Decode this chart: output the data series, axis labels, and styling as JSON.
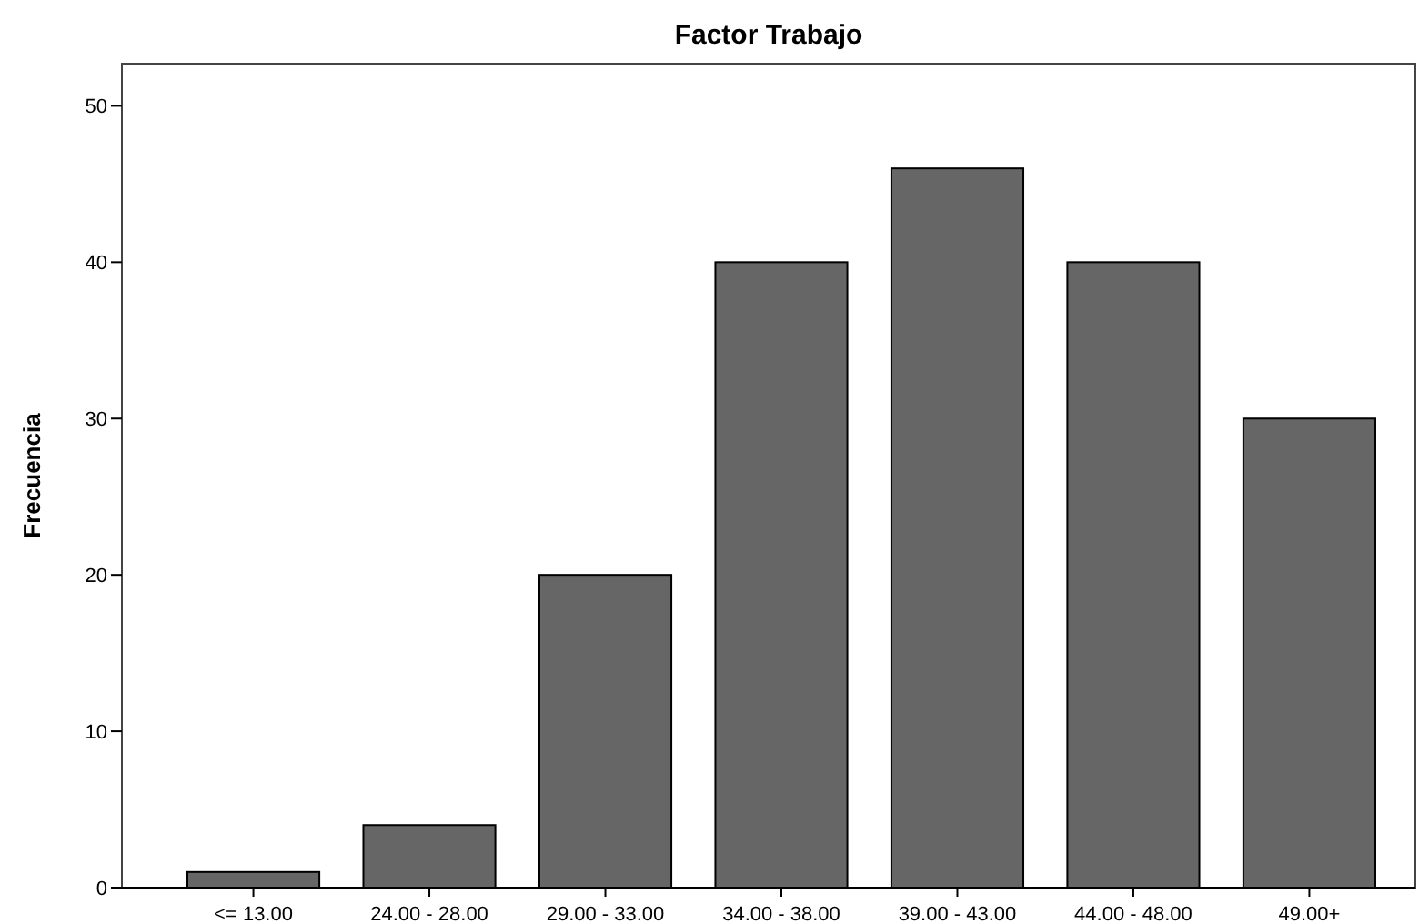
{
  "chart_data": {
    "type": "bar",
    "title": "Factor Trabajo",
    "ylabel": "Frecuencia",
    "categories": [
      "<= 13.00",
      "24.00 - 28.00",
      "29.00 - 33.00",
      "34.00 - 38.00",
      "39.00 - 43.00",
      "44.00 - 48.00",
      "49.00+"
    ],
    "values": [
      1,
      4,
      20,
      40,
      46,
      40,
      30
    ],
    "color": "#666666",
    "ylim": [
      0,
      52.7
    ],
    "yticks": [
      0,
      10,
      20,
      30,
      40,
      50
    ],
    "grid": false
  }
}
